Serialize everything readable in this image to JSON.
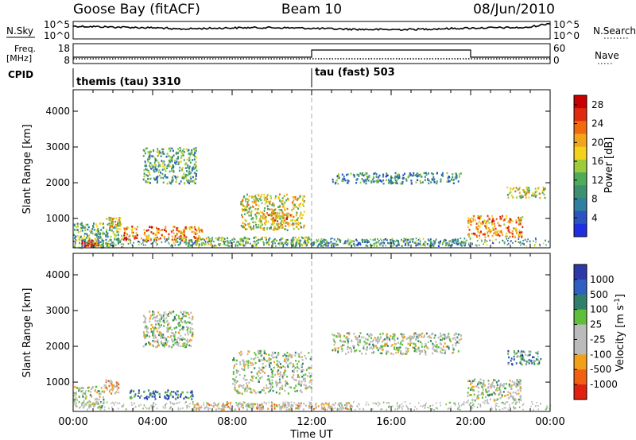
{
  "header": {
    "station": "Goose Bay (fitACF)",
    "beam": "Beam 10",
    "date": "08/Jun/2010"
  },
  "noise_panel": {
    "left_label": "N.Sky",
    "left_ticks": [
      "10^5",
      "10^0"
    ],
    "right_ticks": [
      "10^5",
      "10^0"
    ],
    "right_label": "N.Search"
  },
  "freq_panel": {
    "left_label_1": "Freq.",
    "left_label_2": "[MHz]",
    "left_ticks": [
      "18",
      "8"
    ],
    "right_ticks": [
      "60",
      "0"
    ],
    "right_label": "Nave"
  },
  "cpid": {
    "label": "CPID",
    "segments": [
      {
        "text": "themis (tau) 3310",
        "start_hour": 0
      },
      {
        "text": "tau (fast) 503",
        "start_hour": 12
      }
    ]
  },
  "xaxis": {
    "label": "Time UT",
    "ticks": [
      "00:00",
      "04:00",
      "08:00",
      "12:00",
      "16:00",
      "20:00",
      "00:00"
    ]
  },
  "chart_data": [
    {
      "type": "heatmap",
      "title": "",
      "xlabel": "",
      "ylabel": "Slant Range [km]",
      "xlim_hours": [
        0,
        24
      ],
      "ylim": [
        180,
        4600
      ],
      "yticks": [
        1000,
        2000,
        3000,
        4000
      ],
      "colorbar": {
        "label": "Power [dB]",
        "ticks": [
          "4",
          "8",
          "12",
          "16",
          "20",
          "24",
          "28"
        ],
        "range": [
          0,
          30
        ],
        "colors": [
          "#1f2fe0",
          "#2a55c0",
          "#2f7fa0",
          "#3c9070",
          "#4faa5a",
          "#9ecb3a",
          "#f2d21a",
          "#f2a51a",
          "#f06a10",
          "#e02a10",
          "#c80000"
        ]
      },
      "echo_regions": [
        {
          "t0": 0.0,
          "t1": 2.5,
          "r0": 200,
          "r1": 900,
          "level": 0.4
        },
        {
          "t0": 0.4,
          "t1": 1.2,
          "r0": 250,
          "r1": 420,
          "level": 0.85
        },
        {
          "t0": 1.6,
          "t1": 2.4,
          "r0": 800,
          "r1": 1050,
          "level": 0.6
        },
        {
          "t0": 2.5,
          "t1": 6.5,
          "r0": 400,
          "r1": 800,
          "level": 0.75
        },
        {
          "t0": 3.5,
          "t1": 6.2,
          "r0": 2000,
          "r1": 3000,
          "level": 0.35
        },
        {
          "t0": 5.0,
          "t1": 12.0,
          "r0": 250,
          "r1": 500,
          "level": 0.45
        },
        {
          "t0": 8.4,
          "t1": 11.6,
          "r0": 700,
          "r1": 1700,
          "level": 0.55
        },
        {
          "t0": 9.5,
          "t1": 11.0,
          "r0": 900,
          "r1": 1200,
          "level": 0.7
        },
        {
          "t0": 12.0,
          "t1": 19.8,
          "r0": 250,
          "r1": 450,
          "level": 0.3
        },
        {
          "t0": 13.0,
          "t1": 19.5,
          "r0": 2000,
          "r1": 2300,
          "level": 0.3
        },
        {
          "t0": 19.8,
          "t1": 22.6,
          "r0": 500,
          "r1": 1100,
          "level": 0.7
        },
        {
          "t0": 21.8,
          "t1": 23.8,
          "r0": 1600,
          "r1": 1900,
          "level": 0.55
        }
      ]
    },
    {
      "type": "heatmap",
      "title": "",
      "xlabel": "Time UT",
      "ylabel": "Slant Range [km]",
      "xlim_hours": [
        0,
        24
      ],
      "ylim": [
        180,
        4600
      ],
      "yticks": [
        1000,
        2000,
        3000,
        4000
      ],
      "colorbar": {
        "label": "Velocity [m s^-1]",
        "ticks": [
          "1000",
          "500",
          "100",
          "25",
          "-25",
          "-100",
          "-500",
          "-1000"
        ],
        "range": [
          -1000,
          1000
        ],
        "colors": [
          "#2b3aa8",
          "#2f5fc0",
          "#2f7f6a",
          "#5fbf3a",
          "#bbbbbb",
          "#bbbbbb",
          "#f2a01a",
          "#f06010",
          "#e02010"
        ]
      },
      "echo_regions": [
        {
          "t0": 0.0,
          "t1": 1.5,
          "r0": 300,
          "r1": 900,
          "level": 0.5
        },
        {
          "t0": 1.5,
          "t1": 2.3,
          "r0": 700,
          "r1": 1100,
          "level": 0.65
        },
        {
          "t0": 2.8,
          "t1": 6.0,
          "r0": 550,
          "r1": 800,
          "level": 0.2
        },
        {
          "t0": 3.5,
          "t1": 6.0,
          "r0": 2000,
          "r1": 3000,
          "level": 0.5
        },
        {
          "t0": 8.0,
          "t1": 12.0,
          "r0": 700,
          "r1": 1900,
          "level": 0.5
        },
        {
          "t0": 6.0,
          "t1": 14.0,
          "r0": 250,
          "r1": 450,
          "level": 0.65
        },
        {
          "t0": 13.0,
          "t1": 19.5,
          "r0": 1800,
          "r1": 2400,
          "level": 0.5
        },
        {
          "t0": 19.8,
          "t1": 22.5,
          "r0": 500,
          "r1": 1100,
          "level": 0.5
        },
        {
          "t0": 21.8,
          "t1": 23.5,
          "r0": 1500,
          "r1": 1900,
          "level": 0.3
        }
      ]
    }
  ],
  "colors": {
    "axis": "#000000",
    "dash_line": "#aaaaaa"
  }
}
